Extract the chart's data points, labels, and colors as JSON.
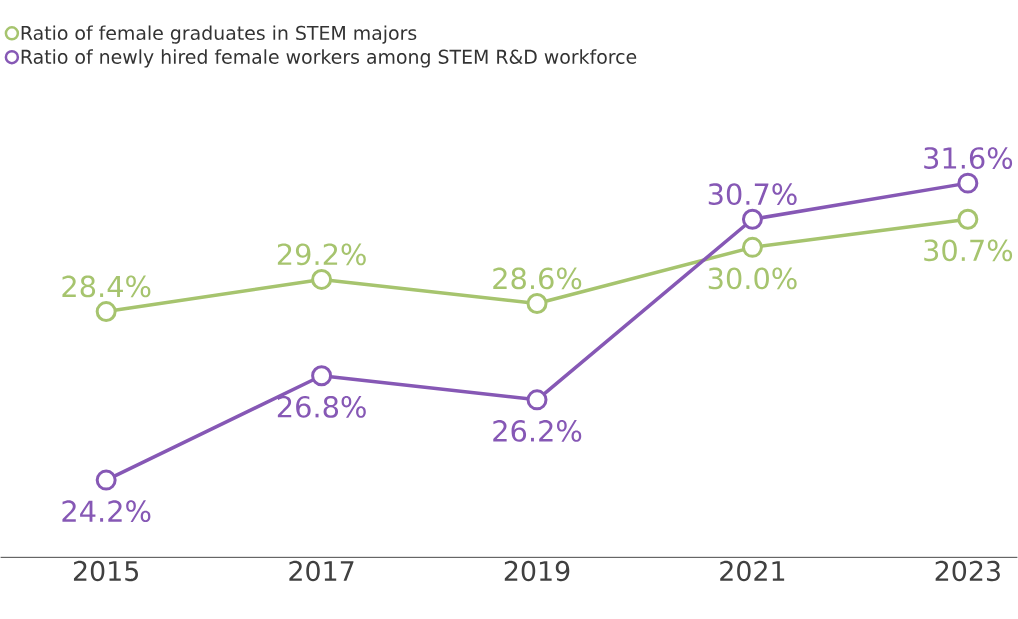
{
  "chart_data": {
    "type": "line",
    "categories": [
      "2015",
      "2017",
      "2019",
      "2021",
      "2023"
    ],
    "series": [
      {
        "name": "Ratio of female graduates in STEM majors",
        "color": "#a6c46e",
        "values": [
          28.4,
          29.2,
          28.6,
          30.0,
          30.7
        ],
        "value_labels": [
          "28.4%",
          "29.2%",
          "28.6%",
          "30.0%",
          "30.7%"
        ]
      },
      {
        "name": "Ratio of newly hired female workers among STEM R&D workforce",
        "color": "#8658b5",
        "values": [
          24.2,
          26.8,
          26.2,
          30.7,
          31.6
        ],
        "value_labels": [
          "24.2%",
          "26.8%",
          "26.2%",
          "30.7%",
          "31.6%"
        ]
      }
    ],
    "tick_labels": "x",
    "grid": false,
    "legend": "top left",
    "marker": "circle",
    "line_style": "solid"
  }
}
